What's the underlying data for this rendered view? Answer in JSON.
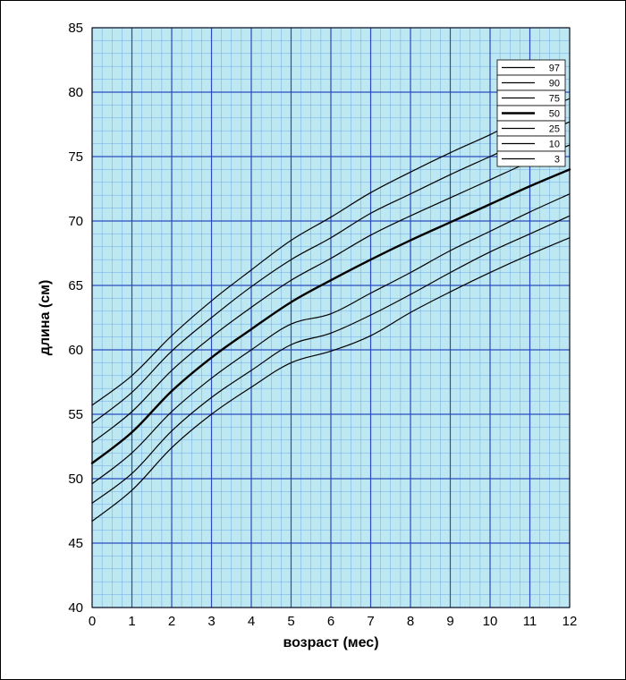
{
  "chart": {
    "type": "line",
    "xlabel": "возраст (мес)",
    "ylabel": "длина (см)",
    "xlim": [
      0,
      12
    ],
    "ylim": [
      40,
      85
    ],
    "xtick_step_major": 1,
    "ytick_step_major": 5,
    "xtick_step_minor": 0.25,
    "ytick_step_minor": 1,
    "xticks": [
      0,
      1,
      2,
      3,
      4,
      5,
      6,
      7,
      8,
      9,
      10,
      11,
      12
    ],
    "yticks": [
      40,
      45,
      50,
      55,
      60,
      65,
      70,
      75,
      80,
      85
    ],
    "background_color": "#ffffff",
    "plot_background_color": "#bde8f2",
    "major_grid_color": "#2b4bbf",
    "minor_grid_color": "#6fa8e6",
    "major_grid_width": 1.2,
    "minor_grid_width": 0.5,
    "tick_label_fontsize": 15,
    "axis_label_fontsize": 16,
    "axis_label_fontweight": "bold",
    "line_color": "#000000",
    "line_width_default": 1.2,
    "line_width_bold": 2.4,
    "legend": {
      "border_color": "#000000",
      "background_color": "#ffffff",
      "label_fontsize": 11,
      "position": "right-upper"
    },
    "series": [
      {
        "name": "97",
        "bold": false,
        "y": [
          55.7,
          58.0,
          61.1,
          63.8,
          66.2,
          68.5,
          70.3,
          72.2,
          73.8,
          75.3,
          76.7,
          78.2,
          79.5
        ]
      },
      {
        "name": "90",
        "bold": false,
        "y": [
          54.3,
          56.7,
          59.9,
          62.5,
          64.9,
          67.0,
          68.7,
          70.6,
          72.1,
          73.6,
          75.0,
          76.4,
          77.7
        ]
      },
      {
        "name": "75",
        "bold": false,
        "y": [
          52.8,
          55.2,
          58.4,
          61.0,
          63.3,
          65.4,
          67.1,
          68.9,
          70.4,
          71.8,
          73.2,
          74.6,
          75.9
        ]
      },
      {
        "name": "50",
        "bold": true,
        "y": [
          51.2,
          53.6,
          56.8,
          59.4,
          61.6,
          63.7,
          65.4,
          67.0,
          68.5,
          69.9,
          71.3,
          72.7,
          74.0
        ]
      },
      {
        "name": "25",
        "bold": false,
        "y": [
          49.6,
          52.0,
          55.2,
          57.8,
          60.0,
          62.0,
          62.8,
          64.4,
          66.0,
          67.7,
          69.2,
          70.7,
          72.1
        ]
      },
      {
        "name": "10",
        "bold": false,
        "y": [
          48.1,
          50.4,
          53.7,
          56.3,
          58.4,
          60.4,
          61.3,
          62.7,
          64.3,
          66.0,
          67.6,
          69.0,
          70.4
        ]
      },
      {
        "name": "3",
        "bold": false,
        "y": [
          46.7,
          49.1,
          52.4,
          55.0,
          57.1,
          59.0,
          59.9,
          61.1,
          62.9,
          64.5,
          66.0,
          67.4,
          68.7
        ]
      }
    ]
  }
}
